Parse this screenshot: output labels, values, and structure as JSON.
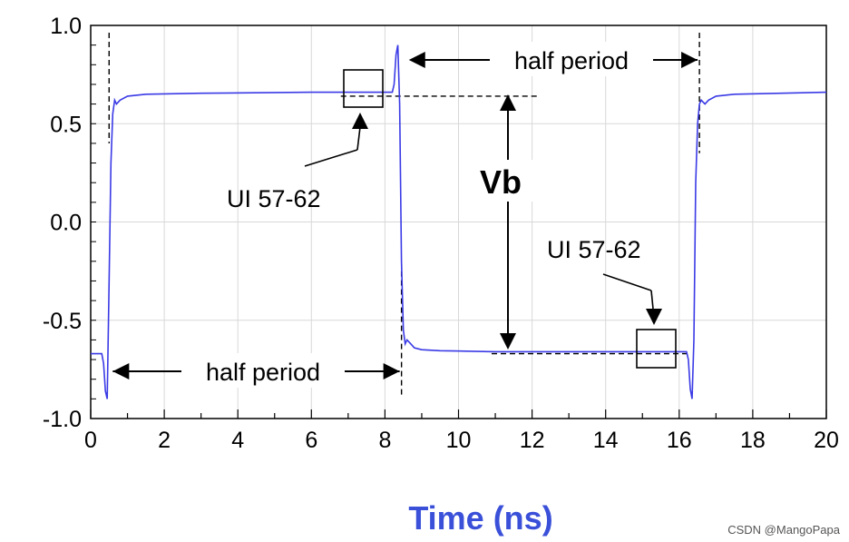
{
  "chart_data": {
    "type": "line",
    "title": "",
    "xlabel": "Time (ns)",
    "ylabel": "",
    "xlim": [
      0,
      20
    ],
    "ylim": [
      -1.0,
      1.0
    ],
    "x_ticks": [
      0,
      2,
      4,
      6,
      8,
      10,
      12,
      14,
      16,
      18,
      20
    ],
    "x_tick_labels": [
      "0",
      "2",
      "4",
      "6",
      "8",
      "10",
      "12",
      "14",
      "16",
      "18",
      "20"
    ],
    "y_ticks": [
      1.0,
      0.5,
      0.0,
      -0.5,
      -1.0
    ],
    "y_tick_labels": [
      "1.0",
      "0.5",
      "0.0",
      "-0.5",
      "-1.0"
    ],
    "grid": true,
    "series": [
      {
        "color": "#3a3ae6",
        "x": [
          0,
          0.3,
          0.35,
          0.4,
          0.45,
          0.5,
          0.55,
          0.6,
          0.65,
          0.7,
          0.8,
          1.0,
          1.5,
          3,
          6,
          8.2,
          8.25,
          8.3,
          8.35,
          8.4,
          8.45,
          8.5,
          8.55,
          8.6,
          8.7,
          8.8,
          9.0,
          9.5,
          11,
          14,
          16.2,
          16.25,
          16.3,
          16.35,
          16.4,
          16.45,
          16.5,
          16.55,
          16.6,
          16.7,
          16.8,
          17.0,
          17.5,
          20
        ],
        "y": [
          -0.67,
          -0.67,
          -0.72,
          -0.86,
          -0.9,
          -0.3,
          0.3,
          0.55,
          0.62,
          0.6,
          0.62,
          0.64,
          0.65,
          0.655,
          0.66,
          0.66,
          0.7,
          0.85,
          0.9,
          0.6,
          -0.2,
          -0.55,
          -0.62,
          -0.6,
          -0.62,
          -0.64,
          -0.65,
          -0.655,
          -0.66,
          -0.66,
          -0.66,
          -0.7,
          -0.85,
          -0.9,
          -0.6,
          0.2,
          0.5,
          0.6,
          0.62,
          0.6,
          0.62,
          0.64,
          0.65,
          0.66
        ]
      }
    ],
    "annotations": {
      "half_period_top": "half period",
      "half_period_bottom": "half period",
      "ui_top": "UI 57-62",
      "ui_bottom": "UI 57-62",
      "vb": "Vb"
    }
  },
  "colors": {
    "trace": "#3a3ae6",
    "axis_label": "#3a50d9",
    "grid": "#d8d8d8"
  },
  "watermark": "CSDN @MangoPapa"
}
